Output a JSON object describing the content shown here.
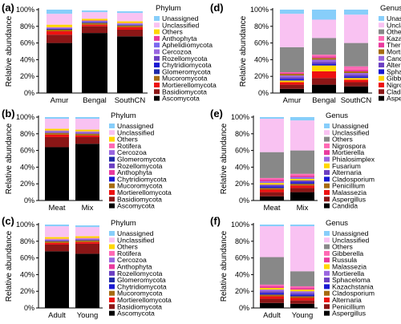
{
  "chart_data": [
    {
      "type": "bar",
      "panel": "(a)",
      "stacked": true,
      "ylabel": "Relative abundance",
      "yticks": [
        "0%",
        "20%",
        "40%",
        "60%",
        "80%",
        "100%"
      ],
      "ylim": [
        0,
        100
      ],
      "categories": [
        "Amur",
        "Bengal",
        "SouthCN"
      ],
      "legend_title": "Phylum",
      "series": [
        {
          "name": "Ascomycota",
          "color": "#000000",
          "values": [
            60,
            72,
            68
          ]
        },
        {
          "name": "Basidiomycota",
          "color": "#8b1616",
          "values": [
            10,
            8,
            8
          ]
        },
        {
          "name": "Mortierellomycota",
          "color": "#ee1111",
          "values": [
            4,
            2,
            3
          ]
        },
        {
          "name": "Mucoromycota",
          "color": "#a66c10",
          "values": [
            2,
            2,
            2
          ]
        },
        {
          "name": "Glomeromycota",
          "color": "#1e2aa8",
          "values": [
            0.5,
            0.5,
            0.5
          ]
        },
        {
          "name": "Chytridiomycota",
          "color": "#1919d2",
          "values": [
            0.5,
            0.5,
            0.5
          ]
        },
        {
          "name": "Rozellomycota",
          "color": "#6b3fc2",
          "values": [
            0.5,
            0.5,
            0.5
          ]
        },
        {
          "name": "Cercozoa",
          "color": "#9966e0",
          "values": [
            0.5,
            0.5,
            0.5
          ]
        },
        {
          "name": "Aphelidiomycota",
          "color": "#7b68ee",
          "values": [
            0.5,
            0.5,
            0.5
          ]
        },
        {
          "name": "Anthophyta",
          "color": "#e93a9e",
          "values": [
            0.5,
            0.5,
            0.5
          ]
        },
        {
          "name": "Others",
          "color": "#ffd700",
          "values": [
            3,
            2,
            2
          ]
        },
        {
          "name": "Unclassified",
          "color": "#f9c2f2",
          "values": [
            13,
            8,
            10
          ]
        },
        {
          "name": "Unassigned",
          "color": "#87cefa",
          "values": [
            5,
            2,
            2
          ]
        }
      ]
    },
    {
      "type": "bar",
      "panel": "(b)",
      "stacked": true,
      "ylabel": "Relative abundance",
      "yticks": [
        "0%",
        "20%",
        "40%",
        "60%",
        "80%",
        "100%"
      ],
      "ylim": [
        0,
        100
      ],
      "categories": [
        "Meat",
        "Mix"
      ],
      "legend_title": "Phylum",
      "series": [
        {
          "name": "Ascomycota",
          "color": "#000000",
          "values": [
            64,
            68
          ]
        },
        {
          "name": "Basidiomycota",
          "color": "#8b1616",
          "values": [
            12,
            8
          ]
        },
        {
          "name": "Mortierellomycota",
          "color": "#ee1111",
          "values": [
            3,
            2
          ]
        },
        {
          "name": "Mucoromycota",
          "color": "#a66c10",
          "values": [
            2,
            2
          ]
        },
        {
          "name": "Chytridiomycota",
          "color": "#1919d2",
          "values": [
            0.5,
            0.5
          ]
        },
        {
          "name": "Anthophyta",
          "color": "#e93a9e",
          "values": [
            0.5,
            0.5
          ]
        },
        {
          "name": "Rozellomycota",
          "color": "#6b3fc2",
          "values": [
            0.5,
            0.5
          ]
        },
        {
          "name": "Glomeromycota",
          "color": "#1e2aa8",
          "values": [
            0.5,
            0.5
          ]
        },
        {
          "name": "Cercozoa",
          "color": "#9966e0",
          "values": [
            0.5,
            0.5
          ]
        },
        {
          "name": "Rotifera",
          "color": "#ff69b4",
          "values": [
            0.5,
            0.5
          ]
        },
        {
          "name": "Others",
          "color": "#ffd700",
          "values": [
            2,
            2
          ]
        },
        {
          "name": "Unclassified",
          "color": "#f9c2f2",
          "values": [
            12,
            13
          ]
        },
        {
          "name": "Unassigned",
          "color": "#87cefa",
          "values": [
            2,
            2
          ]
        }
      ]
    },
    {
      "type": "bar",
      "panel": "(c)",
      "stacked": true,
      "ylabel": "Relative abundance",
      "yticks": [
        "0%",
        "20%",
        "40%",
        "60%",
        "80%",
        "100%"
      ],
      "ylim": [
        0,
        100
      ],
      "categories": [
        "Adult",
        "Young"
      ],
      "legend_title": "Phylum",
      "series": [
        {
          "name": "Ascomycota",
          "color": "#000000",
          "values": [
            68,
            65
          ]
        },
        {
          "name": "Basidiomycota",
          "color": "#8b1616",
          "values": [
            8,
            12
          ]
        },
        {
          "name": "Mortierellomycota",
          "color": "#ee1111",
          "values": [
            2,
            2
          ]
        },
        {
          "name": "Mucoromycota",
          "color": "#a66c10",
          "values": [
            2,
            2
          ]
        },
        {
          "name": "Chytridiomycota",
          "color": "#1919d2",
          "values": [
            0.5,
            0.5
          ]
        },
        {
          "name": "Glomeromycota",
          "color": "#1e2aa8",
          "values": [
            0.5,
            0.5
          ]
        },
        {
          "name": "Rozellomycota",
          "color": "#6b3fc2",
          "values": [
            0.5,
            0.5
          ]
        },
        {
          "name": "Anthophyta",
          "color": "#e93a9e",
          "values": [
            0.5,
            0.5
          ]
        },
        {
          "name": "Cercozoa",
          "color": "#9966e0",
          "values": [
            0.5,
            0.5
          ]
        },
        {
          "name": "Rotifera",
          "color": "#ff69b4",
          "values": [
            0.5,
            0.5
          ]
        },
        {
          "name": "Others",
          "color": "#ffd700",
          "values": [
            2,
            2
          ]
        },
        {
          "name": "Unclassified",
          "color": "#f9c2f2",
          "values": [
            13,
            11
          ]
        },
        {
          "name": "Unassigned",
          "color": "#87cefa",
          "values": [
            2,
            2
          ]
        }
      ]
    },
    {
      "type": "bar",
      "panel": "(d)",
      "stacked": true,
      "ylabel": "Relative abundance",
      "yticks": [
        "0%",
        "20%",
        "40%",
        "60%",
        "80%",
        "100%"
      ],
      "ylim": [
        0,
        100
      ],
      "categories": [
        "Amur",
        "Bengal",
        "SouthCN"
      ],
      "legend_title": "Genus",
      "series": [
        {
          "name": "Aspergillus",
          "color": "#000000",
          "values": [
            5,
            10,
            8
          ]
        },
        {
          "name": "Cladosporium",
          "color": "#8b1616",
          "values": [
            5,
            8,
            5
          ]
        },
        {
          "name": "Nigrospora",
          "color": "#ee1111",
          "values": [
            3,
            8,
            3
          ]
        },
        {
          "name": "Gibberella",
          "color": "#ffd700",
          "values": [
            2,
            7,
            2
          ]
        },
        {
          "name": "Sphaceloma",
          "color": "#1919d2",
          "values": [
            2,
            2,
            2
          ]
        },
        {
          "name": "Alternaria",
          "color": "#6b3fc2",
          "values": [
            2,
            2,
            2
          ]
        },
        {
          "name": "Candida",
          "color": "#9966e0",
          "values": [
            2,
            3,
            2
          ]
        },
        {
          "name": "Mortierella",
          "color": "#a66c10",
          "values": [
            2,
            2,
            2
          ]
        },
        {
          "name": "Thermoascus",
          "color": "#e93a9e",
          "values": [
            1,
            2,
            2
          ]
        },
        {
          "name": "Kazachstania",
          "color": "#ff69b4",
          "values": [
            1,
            2,
            4
          ]
        },
        {
          "name": "Others",
          "color": "#888888",
          "values": [
            30,
            20,
            28
          ]
        },
        {
          "name": "Unclassified",
          "color": "#f9c2f2",
          "values": [
            40,
            22,
            34
          ]
        },
        {
          "name": "Unassigned",
          "color": "#87cefa",
          "values": [
            5,
            12,
            6
          ]
        }
      ]
    },
    {
      "type": "bar",
      "panel": "(e)",
      "stacked": true,
      "ylabel": "Relative abundance",
      "yticks": [
        "0%",
        "20%",
        "40%",
        "60%",
        "80%",
        "100%"
      ],
      "ylim": [
        0,
        100
      ],
      "categories": [
        "Meat",
        "Mix"
      ],
      "legend_title": "Genus",
      "series": [
        {
          "name": "Candida",
          "color": "#000000",
          "values": [
            5,
            10
          ]
        },
        {
          "name": "Aspergillus",
          "color": "#8b1616",
          "values": [
            5,
            5
          ]
        },
        {
          "name": "Malassezia",
          "color": "#ee1111",
          "values": [
            3,
            3
          ]
        },
        {
          "name": "Penicillium",
          "color": "#a66c10",
          "values": [
            2,
            2
          ]
        },
        {
          "name": "Cladosporium",
          "color": "#1919d2",
          "values": [
            2,
            2
          ]
        },
        {
          "name": "Alternaria",
          "color": "#6b3fc2",
          "values": [
            2,
            2
          ]
        },
        {
          "name": "Fusarium",
          "color": "#ffd700",
          "values": [
            2,
            2
          ]
        },
        {
          "name": "Phialosimplex",
          "color": "#9966e0",
          "values": [
            2,
            2
          ]
        },
        {
          "name": "Mortierella",
          "color": "#e93a9e",
          "values": [
            2,
            2
          ]
        },
        {
          "name": "Nigrospora",
          "color": "#ff69b4",
          "values": [
            2,
            2
          ]
        },
        {
          "name": "Others",
          "color": "#888888",
          "values": [
            31,
            28
          ]
        },
        {
          "name": "Unclassified",
          "color": "#f9c2f2",
          "values": [
            40,
            36
          ]
        },
        {
          "name": "Unassigned",
          "color": "#87cefa",
          "values": [
            2,
            4
          ]
        }
      ]
    },
    {
      "type": "bar",
      "panel": "(f)",
      "stacked": true,
      "ylabel": "Relative abundance",
      "yticks": [
        "0%",
        "20%",
        "40%",
        "60%",
        "80%",
        "100%"
      ],
      "ylim": [
        0,
        100
      ],
      "categories": [
        "Adult",
        "Young"
      ],
      "legend_title": "Genus",
      "series": [
        {
          "name": "Aspergillus",
          "color": "#000000",
          "values": [
            6,
            5
          ]
        },
        {
          "name": "Penicillium",
          "color": "#8b1616",
          "values": [
            5,
            4
          ]
        },
        {
          "name": "Alternaria",
          "color": "#ee1111",
          "values": [
            3,
            3
          ]
        },
        {
          "name": "Cladosporium",
          "color": "#a66c10",
          "values": [
            2,
            2
          ]
        },
        {
          "name": "Kazachstania",
          "color": "#1919d2",
          "values": [
            2,
            2
          ]
        },
        {
          "name": "Sphaceloma",
          "color": "#6b3fc2",
          "values": [
            2,
            2
          ]
        },
        {
          "name": "Mortierella",
          "color": "#9966e0",
          "values": [
            2,
            2
          ]
        },
        {
          "name": "Malassezia",
          "color": "#ffd700",
          "values": [
            2,
            2
          ]
        },
        {
          "name": "Russula",
          "color": "#e93a9e",
          "values": [
            2,
            2
          ]
        },
        {
          "name": "Gibberella",
          "color": "#ff69b4",
          "values": [
            2,
            2
          ]
        },
        {
          "name": "Others",
          "color": "#888888",
          "values": [
            33,
            18
          ]
        },
        {
          "name": "Unclassified",
          "color": "#f9c2f2",
          "values": [
            37,
            54
          ]
        },
        {
          "name": "Unassigned",
          "color": "#87cefa",
          "values": [
            2,
            2
          ]
        }
      ]
    }
  ]
}
